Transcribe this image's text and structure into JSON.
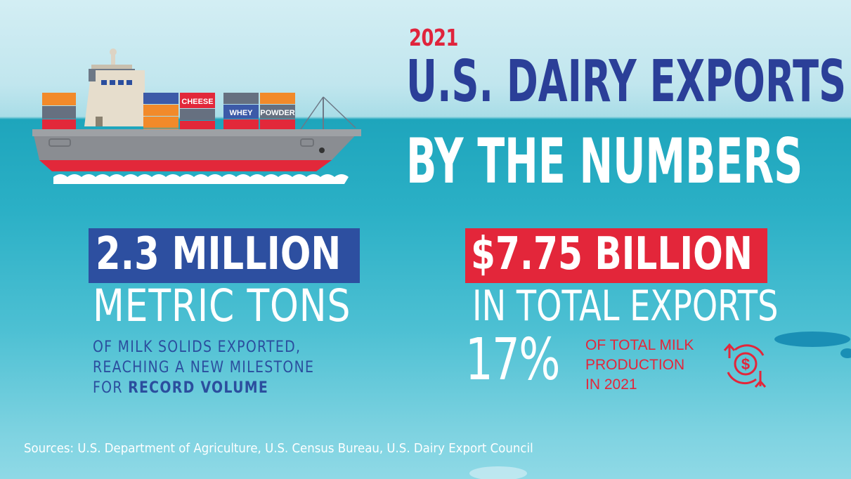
{
  "header": {
    "year": "2021",
    "title_line1": "U.S. DAIRY EXPORTS",
    "title_line2": "BY THE NUMBERS"
  },
  "ship": {
    "container_labels": [
      "CHEESE",
      "WHEY",
      "POWDER"
    ]
  },
  "volume_stat": {
    "headline": "2.3 MILLION",
    "unit": "METRIC TONS",
    "description_line1": "OF MILK SOLIDS EXPORTED,",
    "description_line2": "REACHING A NEW MILESTONE",
    "description_line3_prefix": "FOR ",
    "description_line3_bold": "RECORD VOLUME"
  },
  "value_stat": {
    "headline": "$7.75 BILLION",
    "subline": "IN TOTAL EXPORTS",
    "percent": "17%",
    "percent_label_line1": "OF TOTAL MILK",
    "percent_label_line2": "PRODUCTION",
    "percent_label_line3": "IN 2021",
    "icon": "dollar-exchange-icon"
  },
  "footer": {
    "sources": "Sources: U.S. Department of Agriculture, U.S. Census Bureau, U.S. Dairy Export Council"
  },
  "colors": {
    "navy": "#2b3f98",
    "blue_box": "#2d4fa0",
    "red": "#e3263a",
    "sea": "#1ea5bc",
    "sky": "#d3eef4"
  }
}
